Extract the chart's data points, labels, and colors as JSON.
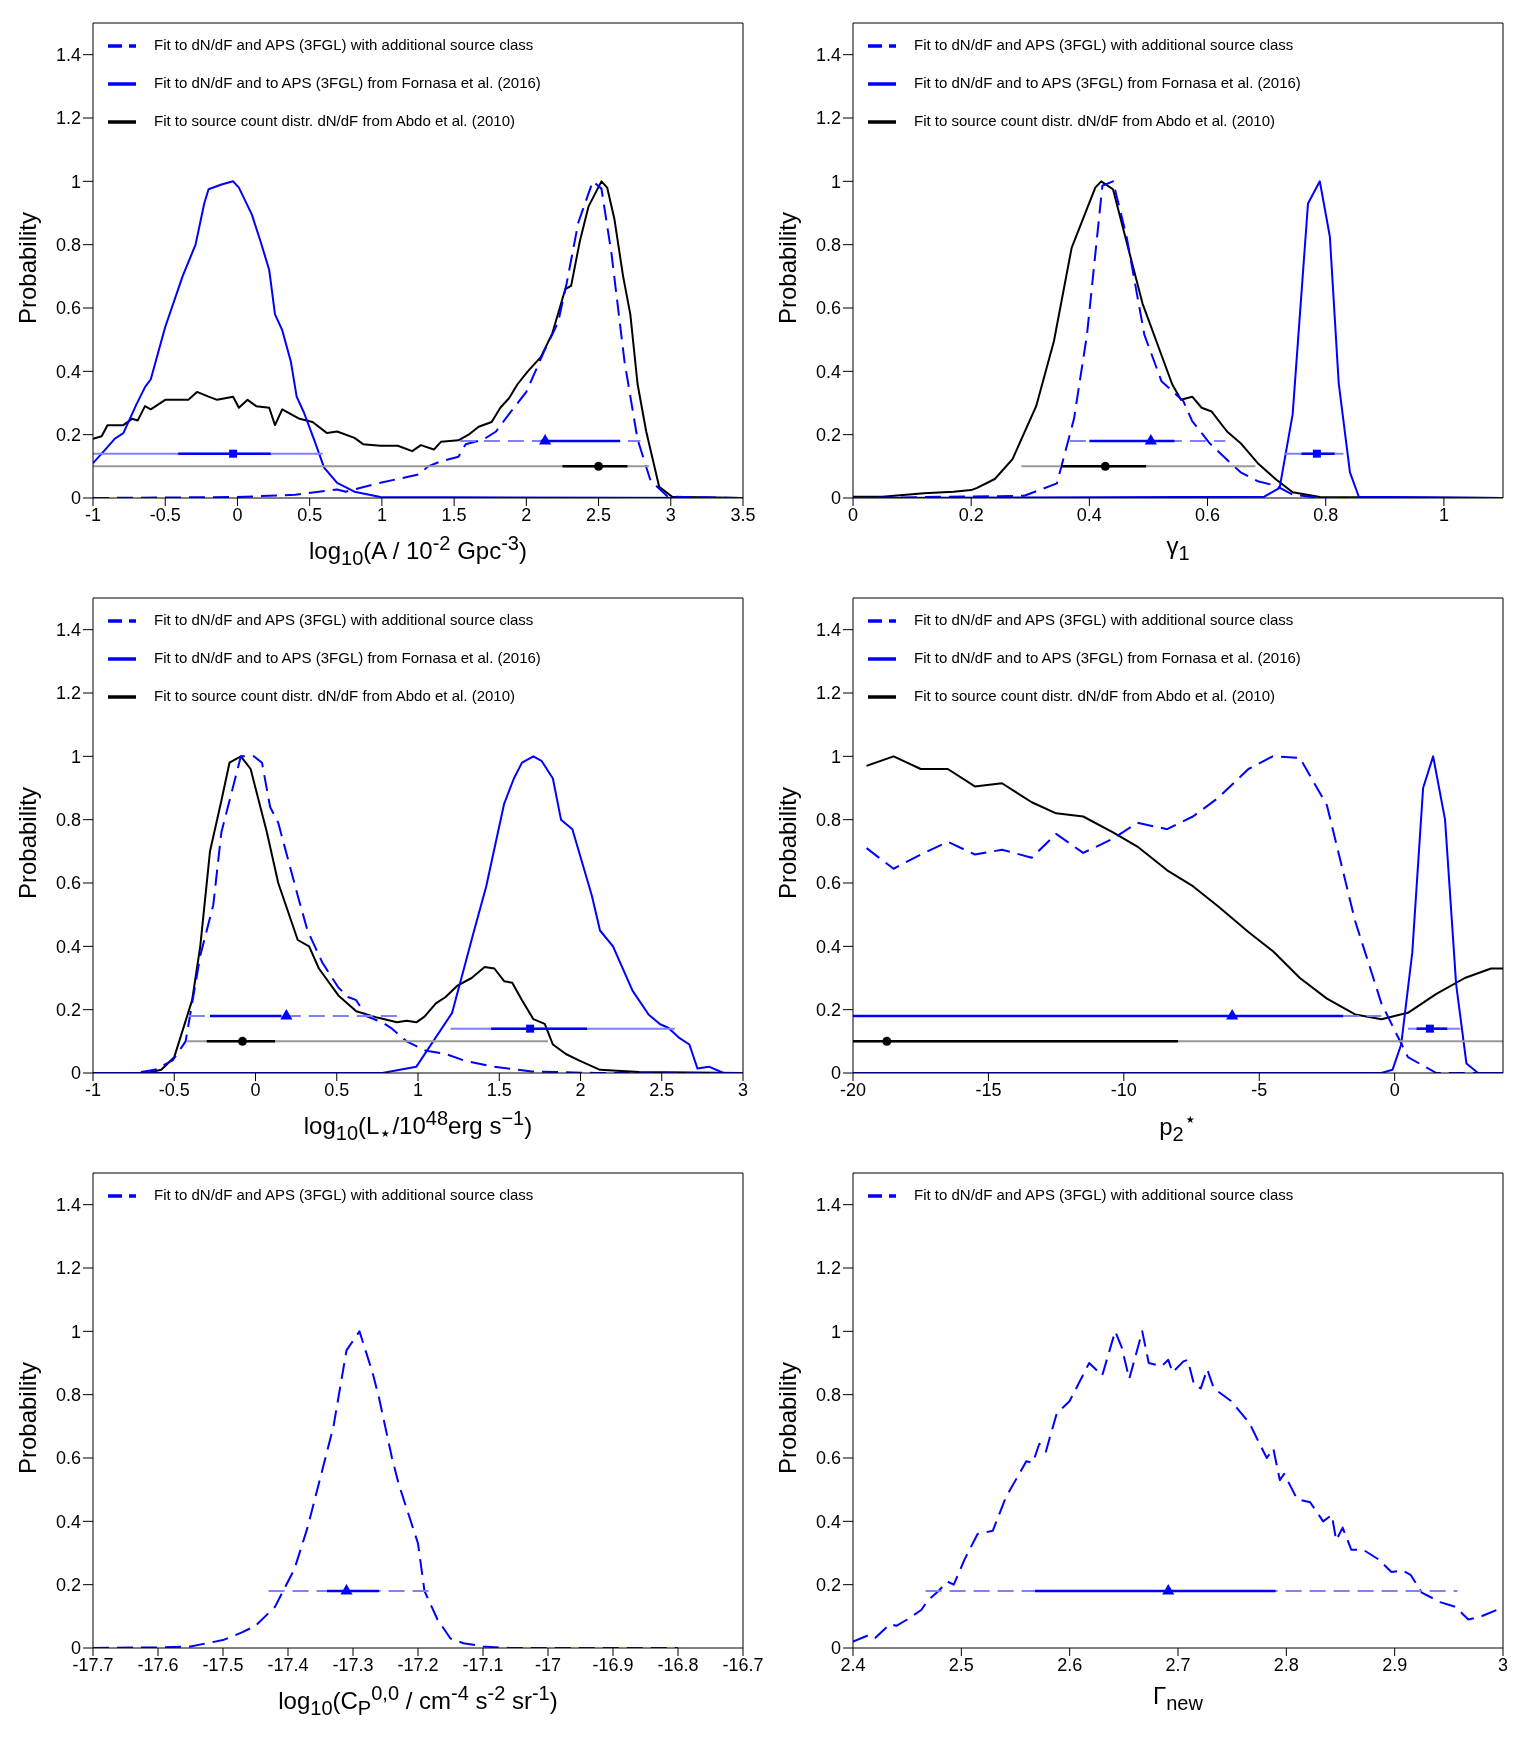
{
  "chart_data": [
    {
      "type": "line",
      "xlabel": "log$_{10}$(A / 10$^{-2}$ Gpc$^{-3}$)",
      "ylabel": "Probability",
      "xlim": [
        -1,
        3.5
      ],
      "xticks": [
        -1,
        -0.5,
        0,
        0.5,
        1,
        1.5,
        2,
        2.5,
        3,
        3.5
      ],
      "ylim": [
        0,
        1.5
      ],
      "yticks": [
        0,
        0.2,
        0.4,
        0.6,
        0.8,
        1,
        1.2,
        1.4
      ],
      "legend": "top",
      "series": [
        {
          "name": "Fit to source count distr. dN/dF from Abdo et al. (2010)",
          "color": "#000000",
          "line_style": "solid",
          "x": [
            -1,
            -0.94,
            -0.9,
            -0.79,
            -0.73,
            -0.69,
            -0.64,
            -0.6,
            -0.5,
            -0.43,
            -0.34,
            -0.28,
            -0.2,
            -0.14,
            -0.03,
            0.01,
            0.07,
            0.13,
            0.22,
            0.26,
            0.31,
            0.43,
            0.52,
            0.62,
            0.69,
            0.81,
            0.87,
            0.99,
            1.11,
            1.21,
            1.27,
            1.36,
            1.41,
            1.53,
            1.6,
            1.67,
            1.76,
            1.82,
            1.88,
            1.94,
            2.01,
            2.1,
            2.18,
            2.27,
            2.31,
            2.37,
            2.43,
            2.52,
            2.56,
            2.61,
            2.67,
            2.72,
            2.77,
            2.83,
            2.92,
            3.01,
            3.5
          ],
          "values": [
            0.187,
            0.195,
            0.23,
            0.23,
            0.25,
            0.245,
            0.29,
            0.28,
            0.31,
            0.31,
            0.31,
            0.335,
            0.32,
            0.31,
            0.32,
            0.285,
            0.31,
            0.29,
            0.285,
            0.23,
            0.28,
            0.25,
            0.24,
            0.205,
            0.21,
            0.19,
            0.17,
            0.165,
            0.165,
            0.148,
            0.167,
            0.153,
            0.178,
            0.182,
            0.2,
            0.225,
            0.24,
            0.285,
            0.315,
            0.36,
            0.4,
            0.445,
            0.52,
            0.66,
            0.67,
            0.81,
            0.92,
            1,
            0.98,
            0.88,
            0.7,
            0.58,
            0.36,
            0.21,
            0.035,
            0.004,
            0
          ]
        },
        {
          "name": "Fit to dN/dF and to APS (3FGL) from Fornasa et al. (2016)",
          "color": "#0000ff",
          "line_style": "solid",
          "x": [
            -1,
            -0.94,
            -0.85,
            -0.79,
            -0.7,
            -0.64,
            -0.6,
            -0.5,
            -0.38,
            -0.29,
            -0.23,
            -0.2,
            -0.11,
            -0.03,
            0.01,
            0.1,
            0.16,
            0.22,
            0.26,
            0.31,
            0.37,
            0.41,
            0.46,
            0.53,
            0.6,
            0.69,
            0.81,
            0.99,
            3.5
          ],
          "values": [
            0.11,
            0.14,
            0.187,
            0.205,
            0.295,
            0.35,
            0.375,
            0.54,
            0.7,
            0.8,
            0.93,
            0.975,
            0.99,
            1,
            0.98,
            0.895,
            0.81,
            0.72,
            0.58,
            0.53,
            0.43,
            0.32,
            0.27,
            0.185,
            0.096,
            0.048,
            0.02,
            0.003,
            0
          ]
        },
        {
          "name": "Fit to dN/dF and APS (3FGL) with additional source class",
          "color": "#0000ff",
          "line_style": "dashed",
          "x": [
            -1,
            -0.02,
            0.4,
            0.69,
            0.75,
            0.81,
            0.99,
            1.11,
            1.26,
            1.32,
            1.41,
            1.53,
            1.58,
            1.7,
            1.79,
            1.88,
            2,
            2.12,
            2.22,
            2.28,
            2.36,
            2.46,
            2.52,
            2.59,
            2.68,
            2.77,
            2.86,
            2.98,
            3.5
          ],
          "values": [
            0,
            0.003,
            0.01,
            0.027,
            0.02,
            0.027,
            0.048,
            0.06,
            0.075,
            0.1,
            0.116,
            0.13,
            0.17,
            0.184,
            0.21,
            0.265,
            0.335,
            0.46,
            0.555,
            0.68,
            0.87,
            1,
            0.977,
            0.77,
            0.43,
            0.185,
            0.055,
            0.004,
            0
          ]
        },
        {
          "type": "line",
          "color": "#999999",
          "line_style": "solid",
          "x": [
            -1,
            2.85
          ],
          "values": [
            0.1,
            0.1
          ]
        },
        {
          "type": "line",
          "color": "#8080ff",
          "line_style": "solid",
          "x": [
            -1,
            0.59
          ],
          "values": [
            0.14,
            0.14
          ]
        },
        {
          "type": "line",
          "color": "#8080ff",
          "line_style": "dashed",
          "x": [
            1.54,
            2.79
          ],
          "values": [
            0.18,
            0.18
          ]
        },
        {
          "type": "scatter",
          "color": "#000000",
          "marker": "circle",
          "x": [
            2.5
          ],
          "values": [
            0.1
          ],
          "xerrors": [
            [
              2.25,
              2.7
            ]
          ]
        },
        {
          "type": "scatter",
          "color": "#0000ff",
          "marker": "square",
          "x": [
            -0.03
          ],
          "values": [
            0.14
          ],
          "xerrors": [
            [
              -0.41,
              0.23
            ]
          ]
        },
        {
          "type": "scatter",
          "color": "#0000ff",
          "marker": "triangle",
          "x": [
            2.13
          ],
          "values": [
            0.18
          ],
          "xerrors": [
            [
              2.1,
              2.65
            ]
          ]
        }
      ]
    },
    {
      "type": "line",
      "xlabel": "γ$_{1}$",
      "ylabel": "Probability",
      "xlim": [
        0,
        1.1
      ],
      "xticks": [
        0,
        0.2,
        0.4,
        0.6,
        0.8,
        1
      ],
      "ylim": [
        0,
        1.5
      ],
      "yticks": [
        0,
        0.2,
        0.4,
        0.6,
        0.8,
        1,
        1.2,
        1.4
      ],
      "legend": "top",
      "series": [
        {
          "name": "Fit to source count distr. dN/dF from Abdo et al. (2010)",
          "color": "#000000",
          "line_style": "solid",
          "x": [
            0,
            0.05,
            0.12,
            0.17,
            0.2,
            0.21,
            0.24,
            0.27,
            0.31,
            0.34,
            0.37,
            0.41,
            0.42,
            0.44,
            0.49,
            0.54,
            0.555,
            0.574,
            0.59,
            0.607,
            0.633,
            0.656,
            0.685,
            0.715,
            0.744,
            0.79,
            1.1
          ],
          "values": [
            0.004,
            0.004,
            0.015,
            0.02,
            0.025,
            0.032,
            0.06,
            0.123,
            0.29,
            0.495,
            0.79,
            0.98,
            1,
            0.975,
            0.614,
            0.36,
            0.31,
            0.32,
            0.285,
            0.273,
            0.21,
            0.173,
            0.11,
            0.06,
            0.018,
            0.003,
            0
          ]
        },
        {
          "name": "Fit to dN/dF and to APS (3FGL) from Fornasa et al. (2016)",
          "color": "#0000ff",
          "line_style": "solid",
          "x": [
            0,
            0.696,
            0.722,
            0.744,
            0.77,
            0.79,
            0.807,
            0.822,
            0.841,
            0.856,
            1.1
          ],
          "values": [
            0,
            0.004,
            0.032,
            0.264,
            0.93,
            1,
            0.825,
            0.362,
            0.081,
            0.004,
            0
          ]
        },
        {
          "name": "Fit to dN/dF and APS (3FGL) with additional source class",
          "color": "#0000ff",
          "line_style": "dashed",
          "x": [
            0,
            0.29,
            0.345,
            0.374,
            0.396,
            0.422,
            0.44,
            0.463,
            0.493,
            0.522,
            0.559,
            0.574,
            0.604,
            0.656,
            0.685,
            0.715,
            0.744,
            0.79,
            1.1
          ],
          "values": [
            0,
            0.007,
            0.046,
            0.25,
            0.516,
            0.986,
            1,
            0.825,
            0.516,
            0.369,
            0.306,
            0.243,
            0.172,
            0.081,
            0.053,
            0.039,
            0.011,
            0,
            0
          ]
        },
        {
          "type": "line",
          "color": "#999999",
          "line_style": "solid",
          "x": [
            0.285,
            0.681
          ],
          "values": [
            0.1,
            0.1
          ]
        },
        {
          "type": "line",
          "color": "#8080ff",
          "line_style": "dashed",
          "x": [
            0.367,
            0.63
          ],
          "values": [
            0.18,
            0.18
          ]
        },
        {
          "type": "line",
          "color": "#8080ff",
          "line_style": "solid",
          "x": [
            0.73,
            0.83
          ],
          "values": [
            0.14,
            0.14
          ]
        },
        {
          "type": "scatter",
          "color": "#000000",
          "marker": "circle",
          "x": [
            0.427
          ],
          "values": [
            0.1
          ],
          "xerrors": [
            [
              0.352,
              0.496
            ]
          ]
        },
        {
          "type": "scatter",
          "color": "#0000ff",
          "marker": "triangle",
          "x": [
            0.504
          ],
          "values": [
            0.18
          ],
          "xerrors": [
            [
              0.4,
              0.544
            ]
          ]
        },
        {
          "type": "scatter",
          "color": "#0000ff",
          "marker": "square",
          "x": [
            0.785
          ],
          "values": [
            0.14
          ],
          "xerrors": [
            [
              0.759,
              0.815
            ]
          ]
        }
      ]
    },
    {
      "type": "line",
      "xlabel": "log$_{10}$(L$_{⋆}$/10$^{48}$erg s$^{−1}$)",
      "ylabel": "Probability",
      "xlim": [
        -1,
        3
      ],
      "xticks": [
        -1,
        -0.5,
        0,
        0.5,
        1,
        1.5,
        2,
        2.5,
        3
      ],
      "ylim": [
        0,
        1.5
      ],
      "yticks": [
        0,
        0.2,
        0.4,
        0.6,
        0.8,
        1,
        1.2,
        1.4
      ],
      "legend": "top",
      "series": [
        {
          "name": "Fit to source count distr. dN/dF from Abdo et al. (2010)",
          "color": "#000000",
          "line_style": "solid",
          "x": [
            -1,
            -0.67,
            -0.58,
            -0.5,
            -0.39,
            -0.34,
            -0.28,
            -0.21,
            -0.16,
            -0.09,
            -0.03,
            0.07,
            0.14,
            0.26,
            0.33,
            0.39,
            0.51,
            0.62,
            0.75,
            0.87,
            0.93,
            0.99,
            1.04,
            1.11,
            1.17,
            1.24,
            1.33,
            1.41,
            1.47,
            1.53,
            1.58,
            1.64,
            1.71,
            1.78,
            1.83,
            1.91,
            1.99,
            2.12,
            2.36,
            3
          ],
          "values": [
            0,
            0,
            0.01,
            0.05,
            0.23,
            0.4,
            0.7,
            0.86,
            0.98,
            1,
            0.96,
            0.76,
            0.6,
            0.42,
            0.4,
            0.33,
            0.245,
            0.195,
            0.175,
            0.16,
            0.165,
            0.16,
            0.178,
            0.22,
            0.24,
            0.275,
            0.3,
            0.335,
            0.33,
            0.29,
            0.285,
            0.23,
            0.17,
            0.155,
            0.09,
            0.06,
            0.04,
            0.01,
            0.003,
            0
          ]
        },
        {
          "name": "Fit to dN/dF and to APS (3FGL) from Fornasa et al. (2016)",
          "color": "#0000ff",
          "line_style": "solid",
          "x": [
            -1,
            0.78,
            0.99,
            1.21,
            1.34,
            1.42,
            1.53,
            1.59,
            1.64,
            1.71,
            1.76,
            1.83,
            1.88,
            1.95,
            2.07,
            2.12,
            2.2,
            2.32,
            2.42,
            2.49,
            2.54,
            2.61,
            2.67,
            2.72,
            2.79,
            2.88,
            3
          ],
          "values": [
            0,
            0,
            0.02,
            0.19,
            0.44,
            0.59,
            0.85,
            0.93,
            0.98,
            1,
            0.986,
            0.93,
            0.8,
            0.77,
            0.56,
            0.45,
            0.4,
            0.26,
            0.184,
            0.154,
            0.143,
            0.11,
            0.09,
            0.014,
            0.02,
            0,
            0
          ]
        },
        {
          "name": "Fit to dN/dF and APS (3FGL) with additional source class",
          "color": "#0000ff",
          "line_style": "dashed",
          "x": [
            -1,
            -0.75,
            -0.62,
            -0.51,
            -0.43,
            -0.34,
            -0.26,
            -0.21,
            -0.14,
            -0.09,
            -0.01,
            0.04,
            0.09,
            0.14,
            0.26,
            0.32,
            0.41,
            0.51,
            0.57,
            0.62,
            0.68,
            0.78,
            0.84,
            0.93,
            1.05,
            1.17,
            1.28,
            1.46,
            1.7,
            2.09,
            3
          ],
          "values": [
            0,
            0,
            0.01,
            0.04,
            0.1,
            0.37,
            0.53,
            0.76,
            0.9,
            1,
            1,
            0.98,
            0.84,
            0.79,
            0.56,
            0.45,
            0.35,
            0.27,
            0.24,
            0.23,
            0.18,
            0.16,
            0.14,
            0.1,
            0.07,
            0.06,
            0.04,
            0.02,
            0.005,
            0,
            0
          ]
        },
        {
          "type": "line",
          "color": "#999999",
          "line_style": "solid",
          "x": [
            -0.42,
            1.8
          ],
          "values": [
            0.1,
            0.1
          ]
        },
        {
          "type": "line",
          "color": "#8080ff",
          "line_style": "dashed",
          "x": [
            -0.41,
            0.88
          ],
          "values": [
            0.18,
            0.18
          ]
        },
        {
          "type": "line",
          "color": "#8080ff",
          "line_style": "solid",
          "x": [
            1.2,
            2.58
          ],
          "values": [
            0.14,
            0.14
          ]
        },
        {
          "type": "scatter",
          "color": "#000000",
          "marker": "circle",
          "x": [
            -0.08
          ],
          "values": [
            0.1
          ],
          "xerrors": [
            [
              -0.3,
              0.12
            ]
          ]
        },
        {
          "type": "scatter",
          "color": "#0000ff",
          "marker": "triangle",
          "x": [
            0.19
          ],
          "values": [
            0.18
          ],
          "xerrors": [
            [
              -0.28,
              0.16
            ]
          ]
        },
        {
          "type": "scatter",
          "color": "#0000ff",
          "marker": "square",
          "x": [
            1.69
          ],
          "values": [
            0.14
          ],
          "xerrors": [
            [
              1.45,
              2.04
            ]
          ]
        }
      ]
    },
    {
      "type": "line",
      "xlabel": "p$_{2}$$^{⋆}$",
      "ylabel": "Probability",
      "xlim": [
        -20,
        4
      ],
      "xticks": [
        -20,
        -15,
        -10,
        -5,
        0
      ],
      "ylim": [
        0,
        1.5
      ],
      "yticks": [
        0,
        0.2,
        0.4,
        0.6,
        0.8,
        1,
        1.2,
        1.4
      ],
      "legend": "top",
      "series": [
        {
          "name": "Fit to source count distr. dN/dF from Abdo et al. (2010)",
          "color": "#000000",
          "line_style": "solid",
          "x": [
            -19.5,
            -18.5,
            -17.5,
            -16.5,
            -15.5,
            -14.5,
            -13.4,
            -12.5,
            -11.5,
            -10.4,
            -9.5,
            -8.4,
            -7.45,
            -6.5,
            -5.4,
            -4.5,
            -3.5,
            -2.5,
            -1.46,
            -0.49,
            0.49,
            1.54,
            2.59,
            3.56,
            4
          ],
          "values": [
            0.97,
            1,
            0.96,
            0.96,
            0.905,
            0.915,
            0.855,
            0.82,
            0.81,
            0.76,
            0.715,
            0.64,
            0.59,
            0.525,
            0.445,
            0.385,
            0.3,
            0.235,
            0.185,
            0.17,
            0.19,
            0.25,
            0.3,
            0.33,
            0.33
          ]
        },
        {
          "name": "Fit to dN/dF and to APS (3FGL) from Fornasa et al. (2016)",
          "color": "#0000ff",
          "line_style": "solid",
          "x": [
            -20,
            -0.49,
            -0.08,
            0.24,
            0.65,
            1.05,
            1.42,
            1.86,
            2.27,
            2.65,
            3.08,
            4
          ],
          "values": [
            0,
            0,
            0.01,
            0.09,
            0.38,
            0.9,
            1,
            0.8,
            0.28,
            0.03,
            0,
            0
          ]
        },
        {
          "name": "Fit to dN/dF and APS (3FGL) with additional source class",
          "color": "#0000ff",
          "line_style": "dashed",
          "x": [
            -19.5,
            -18.5,
            -17.5,
            -16.5,
            -15.5,
            -14.5,
            -13.4,
            -12.5,
            -11.5,
            -10.4,
            -9.5,
            -8.4,
            -7.45,
            -6.5,
            -5.4,
            -4.5,
            -3.5,
            -2.5,
            -1.46,
            -0.49,
            0.49,
            1.54,
            4
          ],
          "values": [
            0.71,
            0.645,
            0.69,
            0.73,
            0.69,
            0.705,
            0.68,
            0.755,
            0.695,
            0.74,
            0.79,
            0.77,
            0.81,
            0.87,
            0.96,
            1,
            0.995,
            0.845,
            0.48,
            0.22,
            0.05,
            0,
            0
          ]
        },
        {
          "type": "line",
          "color": "#999999",
          "line_style": "solid",
          "x": [
            -20,
            4
          ],
          "values": [
            0.1,
            0.1
          ]
        },
        {
          "type": "line",
          "color": "#8080ff",
          "line_style": "dashed",
          "x": [
            -1.9,
            -0.49
          ],
          "values": [
            0.18,
            0.18
          ]
        },
        {
          "type": "line",
          "color": "#8080ff",
          "line_style": "solid",
          "x": [
            0.49,
            2.43
          ],
          "values": [
            0.14,
            0.14
          ]
        },
        {
          "type": "scatter",
          "color": "#000000",
          "marker": "circle",
          "x": [
            -18.75
          ],
          "values": [
            0.1
          ],
          "xerrors": [
            [
              -20,
              -8
            ]
          ]
        },
        {
          "type": "scatter",
          "color": "#0000ff",
          "marker": "triangle",
          "x": [
            -6
          ],
          "values": [
            0.18
          ],
          "xerrors": [
            [
              -20,
              -1.9
            ]
          ]
        },
        {
          "type": "scatter",
          "color": "#0000ff",
          "marker": "square",
          "x": [
            1.3
          ],
          "values": [
            0.14
          ],
          "xerrors": [
            [
              0.81,
              1.94
            ]
          ]
        }
      ]
    },
    {
      "type": "line",
      "xlabel": "log$_{10}$(C$_{P}$$^{0,0}$ / cm$^{-4}$ s$^{-2}$ sr$^{-1}$)",
      "ylabel": "Probability",
      "xlim": [
        -17.7,
        -16.7
      ],
      "xticks": [
        -17.7,
        -17.6,
        -17.5,
        -17.4,
        -17.3,
        -17.2,
        -17.1,
        -17,
        -16.9,
        -16.8,
        -16.7
      ],
      "ylim": [
        0,
        1.5
      ],
      "yticks": [
        0,
        0.2,
        0.4,
        0.6,
        0.8,
        1,
        1.2,
        1.4
      ],
      "legend": "top",
      "series": [
        {
          "name": "Fit to dN/dF and APS (3FGL) with additional source class",
          "color": "#0000ff",
          "line_style": "dashed",
          "x": [
            -17.7,
            -17.6,
            -17.55,
            -17.53,
            -17.5,
            -17.47,
            -17.45,
            -17.42,
            -17.39,
            -17.37,
            -17.35,
            -17.33,
            -17.31,
            -17.29,
            -17.27,
            -17.26,
            -17.24,
            -17.23,
            -17.2,
            -17.19,
            -17.17,
            -17.15,
            -17.13,
            -17.1,
            -17.06,
            -16.8
          ],
          "values": [
            0,
            0.002,
            0.005,
            0.013,
            0.025,
            0.05,
            0.07,
            0.13,
            0.25,
            0.38,
            0.54,
            0.7,
            0.94,
            1,
            0.87,
            0.79,
            0.6,
            0.52,
            0.33,
            0.18,
            0.09,
            0.03,
            0.015,
            0.005,
            0,
            0
          ]
        },
        {
          "type": "line",
          "color": "#8080ff",
          "line_style": "dashed",
          "x": [
            -17.43,
            -17.18
          ],
          "values": [
            0.18,
            0.18
          ]
        },
        {
          "type": "scatter",
          "color": "#0000ff",
          "marker": "triangle",
          "x": [
            -17.31
          ],
          "values": [
            0.18
          ],
          "xerrors": [
            [
              -17.34,
              -17.26
            ]
          ]
        }
      ]
    },
    {
      "type": "line",
      "xlabel": "Γ$_{new}$",
      "ylabel": "Probability",
      "xlim": [
        2.4,
        3
      ],
      "xticks": [
        2.4,
        2.5,
        2.6,
        2.7,
        2.8,
        2.9,
        3
      ],
      "ylim": [
        0,
        1.5
      ],
      "yticks": [
        0,
        0.2,
        0.4,
        0.6,
        0.8,
        1,
        1.2,
        1.4
      ],
      "legend": "top",
      "series": [
        {
          "name": "Fit to dN/dF and APS (3FGL) with additional source class",
          "color": "#0000ff",
          "line_style": "dashed",
          "x": [
            2.4,
            2.414,
            2.42,
            2.434,
            2.44,
            2.45,
            2.463,
            2.469,
            2.479,
            2.487,
            2.493,
            2.503,
            2.515,
            2.529,
            2.541,
            2.56,
            2.566,
            2.572,
            2.578,
            2.588,
            2.6,
            2.618,
            2.63,
            2.642,
            2.648,
            2.655,
            2.667,
            2.673,
            2.685,
            2.691,
            2.695,
            2.705,
            2.709,
            2.715,
            2.721,
            2.727,
            2.733,
            2.749,
            2.766,
            2.776,
            2.782,
            2.788,
            2.794,
            2.798,
            2.81,
            2.822,
            2.834,
            2.842,
            2.846,
            2.852,
            2.86,
            2.871,
            2.885,
            2.897,
            2.907,
            2.915,
            2.925,
            2.942,
            2.956,
            2.968,
            2.98,
            2.994,
            3
          ],
          "values": [
            0.02,
            0.04,
            0.03,
            0.075,
            0.07,
            0.09,
            0.12,
            0.15,
            0.18,
            0.21,
            0.2,
            0.28,
            0.36,
            0.37,
            0.475,
            0.59,
            0.585,
            0.645,
            0.62,
            0.74,
            0.78,
            0.9,
            0.86,
            1,
            0.95,
            0.85,
            1,
            0.9,
            0.89,
            0.91,
            0.87,
            0.905,
            0.91,
            0.83,
            0.82,
            0.88,
            0.82,
            0.78,
            0.71,
            0.64,
            0.6,
            0.63,
            0.53,
            0.55,
            0.47,
            0.46,
            0.4,
            0.42,
            0.34,
            0.38,
            0.31,
            0.31,
            0.28,
            0.24,
            0.245,
            0.23,
            0.175,
            0.145,
            0.13,
            0.09,
            0.1,
            0.12,
            0.11
          ]
        },
        {
          "type": "line",
          "color": "#8080ff",
          "line_style": "dashed",
          "x": [
            2.467,
            2.958
          ],
          "values": [
            0.18,
            0.18
          ]
        },
        {
          "type": "scatter",
          "color": "#0000ff",
          "marker": "triangle",
          "x": [
            2.691
          ],
          "values": [
            0.18
          ],
          "xerrors": [
            [
              2.568,
              2.79
            ]
          ]
        }
      ]
    }
  ]
}
